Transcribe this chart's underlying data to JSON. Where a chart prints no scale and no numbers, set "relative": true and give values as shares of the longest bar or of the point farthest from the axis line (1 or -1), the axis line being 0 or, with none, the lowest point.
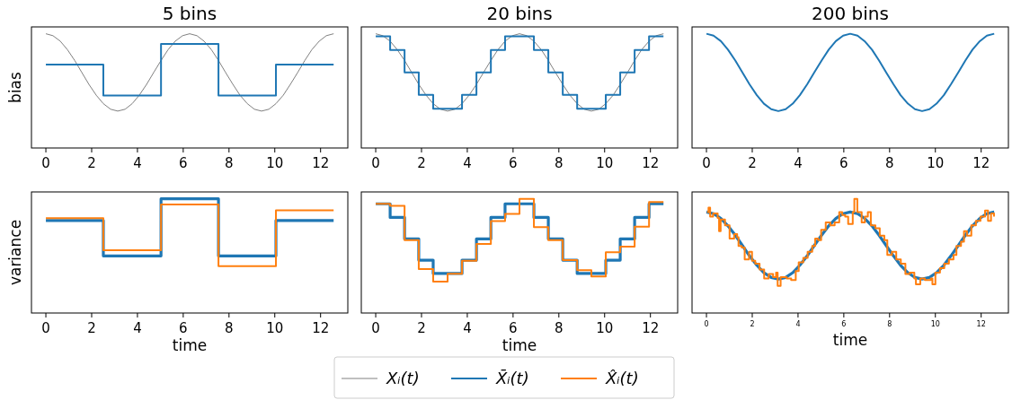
{
  "chart_data": [
    {
      "type": "line",
      "title": "5 bins",
      "ylabel": "bias",
      "relative": true,
      "xlim": [
        -0.63,
        13.19
      ],
      "xticks": [
        0,
        2,
        4,
        6,
        8,
        10,
        12
      ],
      "tick_labels": "x",
      "legend": "bottom",
      "series": [
        {
          "name": "Xᵢ(t)",
          "color": "#808080",
          "type": "line",
          "x": [
            0,
            0.31,
            0.63,
            0.94,
            1.26,
            1.57,
            1.88,
            2.2,
            2.51,
            2.83,
            3.14,
            3.46,
            3.77,
            4.08,
            4.4,
            4.71,
            5.03,
            5.34,
            5.65,
            5.97,
            6.28,
            6.6,
            6.91,
            7.23,
            7.54,
            7.85,
            8.17,
            8.48,
            8.8,
            9.11,
            9.42,
            9.74,
            10.05,
            10.37,
            10.68,
            11,
            11.31,
            11.62,
            11.94,
            12.25,
            12.57
          ],
          "values": [
            1,
            0.983,
            0.935,
            0.861,
            0.766,
            0.661,
            0.557,
            0.462,
            0.388,
            0.339,
            0.323,
            0.339,
            0.388,
            0.462,
            0.557,
            0.661,
            0.766,
            0.861,
            0.935,
            0.983,
            1,
            0.983,
            0.935,
            0.861,
            0.766,
            0.661,
            0.557,
            0.462,
            0.388,
            0.339,
            0.323,
            0.339,
            0.388,
            0.462,
            0.557,
            0.661,
            0.766,
            0.861,
            0.935,
            0.983,
            1
          ]
        },
        {
          "name": "X̄ᵢ(t)",
          "color": "#1f77b4",
          "type": "step",
          "x": [
            0,
            2.51,
            5.03,
            7.54,
            10.05,
            12.57
          ],
          "values": [
            0.73,
            0.46,
            0.91,
            0.46,
            0.73,
            0.73
          ]
        }
      ]
    },
    {
      "type": "line",
      "title": "20 bins",
      "relative": true,
      "xlim": [
        -0.63,
        13.19
      ],
      "xticks": [
        0,
        2,
        4,
        6,
        8,
        10,
        12
      ],
      "tick_labels": "x",
      "legend": "bottom",
      "series": [
        {
          "name": "Xᵢ(t)",
          "color": "#808080",
          "type": "line",
          "x": [
            0,
            0.31,
            0.63,
            0.94,
            1.26,
            1.57,
            1.88,
            2.2,
            2.51,
            2.83,
            3.14,
            3.46,
            3.77,
            4.08,
            4.4,
            4.71,
            5.03,
            5.34,
            5.65,
            5.97,
            6.28,
            6.6,
            6.91,
            7.23,
            7.54,
            7.85,
            8.17,
            8.48,
            8.8,
            9.11,
            9.42,
            9.74,
            10.05,
            10.37,
            10.68,
            11,
            11.31,
            11.62,
            11.94,
            12.25,
            12.57
          ],
          "values": [
            1,
            0.983,
            0.935,
            0.861,
            0.766,
            0.661,
            0.557,
            0.462,
            0.388,
            0.339,
            0.323,
            0.339,
            0.388,
            0.462,
            0.557,
            0.661,
            0.766,
            0.861,
            0.935,
            0.983,
            1,
            0.983,
            0.935,
            0.861,
            0.766,
            0.661,
            0.557,
            0.462,
            0.388,
            0.339,
            0.323,
            0.339,
            0.388,
            0.462,
            0.557,
            0.661,
            0.766,
            0.861,
            0.935,
            0.983,
            1
          ]
        },
        {
          "name": "X̄ᵢ(t)",
          "color": "#1f77b4",
          "type": "step",
          "x": [
            0,
            0.63,
            1.26,
            1.88,
            2.51,
            3.14,
            3.77,
            4.4,
            5.03,
            5.65,
            6.28,
            6.91,
            7.54,
            8.17,
            8.8,
            9.42,
            10.05,
            10.68,
            11.31,
            11.94,
            12.57
          ],
          "values": [
            0.978,
            0.857,
            0.661,
            0.466,
            0.344,
            0.344,
            0.466,
            0.661,
            0.857,
            0.978,
            0.978,
            0.857,
            0.661,
            0.466,
            0.344,
            0.344,
            0.466,
            0.661,
            0.857,
            0.978,
            0.978
          ]
        }
      ]
    },
    {
      "type": "line",
      "title": "200 bins",
      "relative": true,
      "xlim": [
        -0.63,
        13.19
      ],
      "xticks": [
        0,
        2,
        4,
        6,
        8,
        10,
        12
      ],
      "tick_labels": "x",
      "legend": "bottom",
      "series": [
        {
          "name": "X̄ᵢ(t)",
          "color": "#1f77b4",
          "type": "line",
          "x": [
            0,
            0.31,
            0.63,
            0.94,
            1.26,
            1.57,
            1.88,
            2.2,
            2.51,
            2.83,
            3.14,
            3.46,
            3.77,
            4.08,
            4.4,
            4.71,
            5.03,
            5.34,
            5.65,
            5.97,
            6.28,
            6.6,
            6.91,
            7.23,
            7.54,
            7.85,
            8.17,
            8.48,
            8.8,
            9.11,
            9.42,
            9.74,
            10.05,
            10.37,
            10.68,
            11,
            11.31,
            11.62,
            11.94,
            12.25,
            12.57
          ],
          "values": [
            1,
            0.983,
            0.935,
            0.861,
            0.766,
            0.661,
            0.557,
            0.462,
            0.388,
            0.339,
            0.323,
            0.339,
            0.388,
            0.462,
            0.557,
            0.661,
            0.766,
            0.861,
            0.935,
            0.983,
            1,
            0.983,
            0.935,
            0.861,
            0.766,
            0.661,
            0.557,
            0.462,
            0.388,
            0.339,
            0.323,
            0.339,
            0.388,
            0.462,
            0.557,
            0.661,
            0.766,
            0.861,
            0.935,
            0.983,
            1
          ]
        }
      ]
    },
    {
      "type": "line",
      "ylabel": "variance",
      "xlabel": "time",
      "relative": true,
      "xlim": [
        -0.63,
        13.19
      ],
      "xticks": [
        0,
        2,
        4,
        6,
        8,
        10,
        12
      ],
      "tick_labels": "x",
      "legend": "bottom",
      "series": [
        {
          "name": "X̄ᵢ(t)",
          "color": "#1f77b4",
          "type": "step",
          "x": [
            0,
            2.51,
            5.03,
            7.54,
            10.05,
            12.57
          ],
          "values": [
            0.81,
            0.5,
            1,
            0.5,
            0.81,
            0.81
          ]
        },
        {
          "name": "X̂ᵢ(t)",
          "color": "#ff7f0e",
          "type": "step",
          "x": [
            0,
            2.51,
            5.03,
            7.54,
            10.05,
            12.57
          ],
          "values": [
            0.83,
            0.55,
            0.95,
            0.41,
            0.9,
            0.9
          ]
        }
      ]
    },
    {
      "type": "line",
      "xlabel": "time",
      "relative": true,
      "xlim": [
        -0.63,
        13.19
      ],
      "xticks": [
        0,
        2,
        4,
        6,
        8,
        10,
        12
      ],
      "tick_labels": "x",
      "legend": "bottom",
      "series": [
        {
          "name": "X̄ᵢ(t)",
          "color": "#1f77b4",
          "type": "step",
          "x": [
            0,
            0.63,
            1.26,
            1.88,
            2.51,
            3.14,
            3.77,
            4.4,
            5.03,
            5.65,
            6.28,
            6.91,
            7.54,
            8.17,
            8.8,
            9.42,
            10.05,
            10.68,
            11.31,
            11.94,
            12.57
          ],
          "values": [
            0.956,
            0.837,
            0.649,
            0.463,
            0.346,
            0.346,
            0.463,
            0.649,
            0.837,
            0.956,
            0.956,
            0.837,
            0.649,
            0.463,
            0.346,
            0.346,
            0.463,
            0.649,
            0.837,
            0.956,
            0.956
          ]
        },
        {
          "name": "X̂ᵢ(t)",
          "color": "#ff7f0e",
          "type": "step",
          "x": [
            0,
            0.63,
            1.26,
            1.88,
            2.51,
            3.14,
            3.77,
            4.4,
            5.03,
            5.65,
            6.28,
            6.91,
            7.54,
            8.17,
            8.8,
            9.42,
            10.05,
            10.68,
            11.31,
            11.94,
            12.57
          ],
          "values": [
            0.956,
            0.938,
            0.638,
            0.385,
            0.274,
            0.344,
            0.457,
            0.605,
            0.804,
            0.868,
            1,
            0.752,
            0.638,
            0.463,
            0.375,
            0.32,
            0.532,
            0.581,
            0.755,
            0.972,
            0.972
          ]
        }
      ]
    },
    {
      "type": "line",
      "xlabel": "time",
      "relative": true,
      "xlim": [
        -0.63,
        13.19
      ],
      "xticks": [
        0,
        2,
        4,
        6,
        8,
        10,
        12
      ],
      "tick_labels": "x",
      "legend": "bottom",
      "series": [
        {
          "name": "X̄ᵢ(t)",
          "color": "#1f77b4",
          "type": "line",
          "x": [
            0,
            0.31,
            0.63,
            0.94,
            1.26,
            1.57,
            1.88,
            2.2,
            2.51,
            2.83,
            3.14,
            3.46,
            3.77,
            4.08,
            4.4,
            4.71,
            5.03,
            5.34,
            5.65,
            5.97,
            6.28,
            6.6,
            6.91,
            7.23,
            7.54,
            7.85,
            8.17,
            8.48,
            8.8,
            9.11,
            9.42,
            9.74,
            10.05,
            10.37,
            10.68,
            11,
            11.31,
            11.62,
            11.94,
            12.25,
            12.57
          ],
          "values": [
            0.884,
            0.87,
            0.828,
            0.763,
            0.681,
            0.591,
            0.5,
            0.418,
            0.353,
            0.311,
            0.297,
            0.311,
            0.353,
            0.418,
            0.5,
            0.591,
            0.681,
            0.763,
            0.828,
            0.87,
            0.884,
            0.87,
            0.828,
            0.763,
            0.681,
            0.591,
            0.5,
            0.418,
            0.353,
            0.311,
            0.297,
            0.311,
            0.353,
            0.418,
            0.5,
            0.591,
            0.681,
            0.763,
            0.828,
            0.87,
            0.884
          ]
        },
        {
          "name": "X̂ᵢ(t)",
          "color": "#ff7f0e",
          "type": "step",
          "x": [
            0.03,
            0.09,
            0.16,
            0.29,
            0.49,
            0.55,
            0.62,
            0.81,
            1.01,
            1.21,
            1.34,
            1.4,
            1.54,
            1.67,
            1.86,
            1.99,
            2.13,
            2.32,
            2.52,
            2.72,
            2.91,
            3.04,
            3.11,
            3.24,
            3.5,
            3.7,
            3.9,
            4.03,
            4.23,
            4.42,
            4.62,
            4.75,
            4.88,
            5.01,
            5.21,
            5.41,
            5.6,
            5.8,
            5.93,
            6.06,
            6.19,
            6.39,
            6.46,
            6.59,
            6.78,
            6.92,
            7.05,
            7.18,
            7.38,
            7.57,
            7.77,
            7.9,
            8.1,
            8.29,
            8.49,
            8.69,
            8.88,
            9.08,
            9.15,
            9.34,
            9.54,
            9.8,
            9.87,
            10,
            10.2,
            10.39,
            10.59,
            10.79,
            10.92,
            11.12,
            11.25,
            11.38,
            11.57,
            11.77,
            11.97,
            12.17,
            12.3,
            12.43,
            12.56
          ],
          "values": [
            0.884,
            0.922,
            0.845,
            0.871,
            0.832,
            0.716,
            0.819,
            0.767,
            0.651,
            0.69,
            0.664,
            0.587,
            0.574,
            0.47,
            0.535,
            0.457,
            0.432,
            0.38,
            0.302,
            0.341,
            0.315,
            0.354,
            0.238,
            0.315,
            0.302,
            0.289,
            0.367,
            0.444,
            0.483,
            0.535,
            0.587,
            0.651,
            0.638,
            0.729,
            0.793,
            0.767,
            0.793,
            0.884,
            0.858,
            0.845,
            0.78,
            0.884,
            1,
            0.884,
            0.793,
            0.845,
            0.884,
            0.767,
            0.742,
            0.677,
            0.638,
            0.509,
            0.535,
            0.47,
            0.432,
            0.341,
            0.354,
            0.302,
            0.251,
            0.302,
            0.289,
            0.302,
            0.251,
            0.354,
            0.393,
            0.432,
            0.47,
            0.509,
            0.587,
            0.625,
            0.716,
            0.677,
            0.767,
            0.806,
            0.845,
            0.897,
            0.806,
            0.871,
            0.845
          ]
        }
      ]
    }
  ]
}
